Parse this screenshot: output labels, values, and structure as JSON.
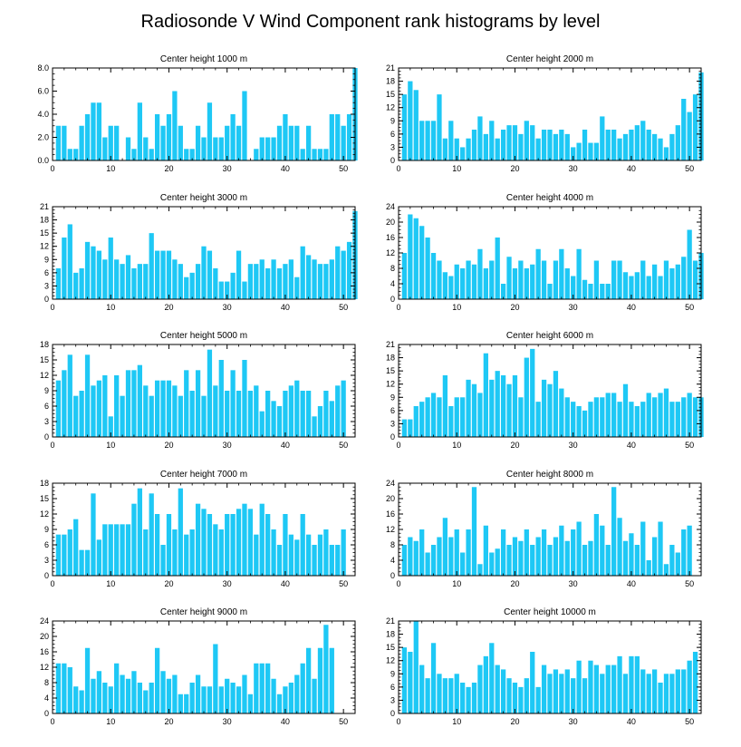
{
  "title": "Radiosonde V Wind Component rank histograms by level",
  "colors": {
    "bar": "#1ec8f5",
    "axis": "#000000"
  },
  "chart_data": [
    {
      "type": "bar",
      "title": "Center height 1000 m",
      "ylim": [
        0,
        8
      ],
      "yticks": [
        "0.0",
        "2.0",
        "4.0",
        "6.0",
        "8.0"
      ],
      "xlim": [
        0,
        52
      ],
      "xticks": [
        "0",
        "10",
        "20",
        "30",
        "40",
        "50"
      ],
      "values": [
        3,
        3,
        1,
        1,
        3,
        4,
        5,
        5,
        2,
        3,
        3,
        0,
        2,
        1,
        5,
        2,
        1,
        4,
        3,
        4,
        6,
        3,
        1,
        1,
        3,
        2,
        5,
        2,
        2,
        3,
        4,
        3,
        6,
        0,
        1,
        2,
        2,
        2,
        3,
        4,
        3,
        3,
        1,
        3,
        1,
        1,
        1,
        4,
        4,
        3,
        4,
        8
      ]
    },
    {
      "type": "bar",
      "title": "Center height 2000 m",
      "ylim": [
        0,
        21
      ],
      "yticks": [
        "0",
        "3",
        "6",
        "9",
        "12",
        "15",
        "18",
        "21"
      ],
      "xlim": [
        0,
        52
      ],
      "xticks": [
        "0",
        "10",
        "20",
        "30",
        "40",
        "50"
      ],
      "values": [
        15,
        18,
        16,
        9,
        9,
        9,
        15,
        5,
        9,
        5,
        3,
        5,
        7,
        10,
        6,
        9,
        5,
        7,
        8,
        8,
        6,
        9,
        8,
        5,
        7,
        7,
        6,
        7,
        6,
        3,
        4,
        7,
        4,
        4,
        10,
        7,
        7,
        5,
        6,
        7,
        8,
        9,
        7,
        6,
        5,
        3,
        6,
        8,
        14,
        11,
        15,
        20
      ]
    },
    {
      "type": "bar",
      "title": "Center height 3000 m",
      "ylim": [
        0,
        21
      ],
      "yticks": [
        "0",
        "3",
        "6",
        "9",
        "12",
        "15",
        "18",
        "21"
      ],
      "xlim": [
        0,
        52
      ],
      "xticks": [
        "0",
        "10",
        "20",
        "30",
        "40",
        "50"
      ],
      "values": [
        7,
        14,
        17,
        6,
        7,
        13,
        12,
        11,
        9,
        14,
        9,
        8,
        10,
        7,
        8,
        8,
        15,
        11,
        11,
        11,
        9,
        8,
        5,
        6,
        8,
        12,
        11,
        7,
        4,
        4,
        6,
        11,
        4,
        8,
        8,
        9,
        7,
        9,
        7,
        8,
        9,
        5,
        12,
        10,
        9,
        8,
        8,
        9,
        12,
        11,
        13,
        20
      ]
    },
    {
      "type": "bar",
      "title": "Center height 4000 m",
      "ylim": [
        0,
        24
      ],
      "yticks": [
        "0",
        "4",
        "8",
        "12",
        "16",
        "20",
        "24"
      ],
      "xlim": [
        0,
        52
      ],
      "xticks": [
        "0",
        "10",
        "20",
        "30",
        "40",
        "50"
      ],
      "values": [
        12,
        22,
        21,
        19,
        16,
        12,
        10,
        7,
        6,
        9,
        8,
        10,
        9,
        13,
        8,
        10,
        16,
        4,
        11,
        8,
        10,
        8,
        9,
        13,
        10,
        4,
        10,
        13,
        8,
        6,
        13,
        5,
        4,
        10,
        4,
        4,
        10,
        10,
        7,
        6,
        7,
        10,
        6,
        9,
        6,
        10,
        8,
        9,
        11,
        18,
        10,
        12
      ]
    },
    {
      "type": "bar",
      "title": "Center height 5000 m",
      "ylim": [
        0,
        18
      ],
      "yticks": [
        "0",
        "3",
        "6",
        "9",
        "12",
        "15",
        "18"
      ],
      "xlim": [
        0,
        52
      ],
      "xticks": [
        "0",
        "10",
        "20",
        "30",
        "40",
        "50"
      ],
      "values": [
        11,
        13,
        16,
        8,
        9,
        16,
        10,
        11,
        12,
        4,
        12,
        8,
        13,
        13,
        14,
        10,
        8,
        11,
        11,
        11,
        10,
        8,
        13,
        9,
        13,
        8,
        17,
        10,
        15,
        9,
        13,
        9,
        15,
        9,
        10,
        5,
        9,
        7,
        6,
        9,
        10,
        11,
        9,
        9,
        4,
        6,
        9,
        7,
        10,
        11
      ]
    },
    {
      "type": "bar",
      "title": "Center height 6000 m",
      "ylim": [
        0,
        21
      ],
      "yticks": [
        "0",
        "3",
        "6",
        "9",
        "12",
        "15",
        "18",
        "21"
      ],
      "xlim": [
        0,
        52
      ],
      "xticks": [
        "0",
        "10",
        "20",
        "30",
        "40",
        "50"
      ],
      "values": [
        4,
        4,
        7,
        8,
        9,
        10,
        9,
        14,
        7,
        9,
        9,
        13,
        12,
        10,
        19,
        13,
        15,
        14,
        12,
        14,
        9,
        18,
        20,
        8,
        13,
        12,
        15,
        11,
        9,
        8,
        7,
        6,
        8,
        9,
        9,
        10,
        10,
        8,
        12,
        8,
        7,
        8,
        10,
        9,
        10,
        11,
        8,
        8,
        9,
        10,
        9,
        9
      ]
    },
    {
      "type": "bar",
      "title": "Center height 7000 m",
      "ylim": [
        0,
        18
      ],
      "yticks": [
        "0",
        "3",
        "6",
        "9",
        "12",
        "15",
        "18"
      ],
      "xlim": [
        0,
        52
      ],
      "xticks": [
        "0",
        "10",
        "20",
        "30",
        "40",
        "50"
      ],
      "values": [
        8,
        8,
        9,
        11,
        5,
        5,
        16,
        7,
        10,
        10,
        10,
        10,
        10,
        14,
        17,
        9,
        16,
        12,
        6,
        12,
        9,
        17,
        8,
        9,
        14,
        13,
        12,
        10,
        9,
        12,
        12,
        13,
        14,
        13,
        8,
        14,
        12,
        9,
        6,
        12,
        8,
        7,
        12,
        8,
        6,
        8,
        9,
        6,
        6,
        9
      ]
    },
    {
      "type": "bar",
      "title": "Center height 8000 m",
      "ylim": [
        0,
        24
      ],
      "yticks": [
        "0",
        "4",
        "8",
        "12",
        "16",
        "20",
        "24"
      ],
      "xlim": [
        0,
        52
      ],
      "xticks": [
        "0",
        "10",
        "20",
        "30",
        "40",
        "50"
      ],
      "values": [
        8,
        10,
        9,
        12,
        6,
        8,
        10,
        15,
        10,
        12,
        6,
        12,
        23,
        3,
        13,
        6,
        7,
        12,
        8,
        10,
        9,
        12,
        8,
        10,
        12,
        8,
        10,
        13,
        9,
        12,
        14,
        8,
        9,
        16,
        13,
        8,
        23,
        15,
        9,
        11,
        8,
        14,
        4,
        10,
        14,
        3,
        8,
        6,
        12,
        13
      ]
    },
    {
      "type": "bar",
      "title": "Center height 9000 m",
      "ylim": [
        0,
        24
      ],
      "yticks": [
        "0",
        "4",
        "8",
        "12",
        "16",
        "20",
        "24"
      ],
      "xlim": [
        0,
        52
      ],
      "xticks": [
        "0",
        "10",
        "20",
        "30",
        "40",
        "50"
      ],
      "values": [
        13,
        13,
        12,
        7,
        6,
        17,
        9,
        11,
        8,
        7,
        13,
        10,
        9,
        11,
        8,
        6,
        8,
        17,
        11,
        9,
        10,
        5,
        5,
        8,
        10,
        7,
        7,
        18,
        7,
        9,
        8,
        7,
        10,
        5,
        13,
        13,
        13,
        9,
        5,
        7,
        8,
        10,
        13,
        17,
        9,
        17,
        23,
        17
      ]
    },
    {
      "type": "bar",
      "title": "Center height 10000 m",
      "ylim": [
        0,
        21
      ],
      "yticks": [
        "0",
        "3",
        "6",
        "9",
        "12",
        "15",
        "18",
        "21"
      ],
      "xlim": [
        0,
        52
      ],
      "xticks": [
        "0",
        "10",
        "20",
        "30",
        "40",
        "50"
      ],
      "values": [
        15,
        14,
        21,
        11,
        8,
        16,
        9,
        8,
        8,
        9,
        7,
        6,
        7,
        11,
        13,
        16,
        11,
        10,
        8,
        7,
        6,
        8,
        14,
        6,
        11,
        9,
        10,
        9,
        10,
        8,
        12,
        8,
        12,
        11,
        9,
        11,
        11,
        13,
        9,
        13,
        13,
        10,
        9,
        10,
        7,
        9,
        9,
        10,
        10,
        12,
        14
      ]
    }
  ]
}
